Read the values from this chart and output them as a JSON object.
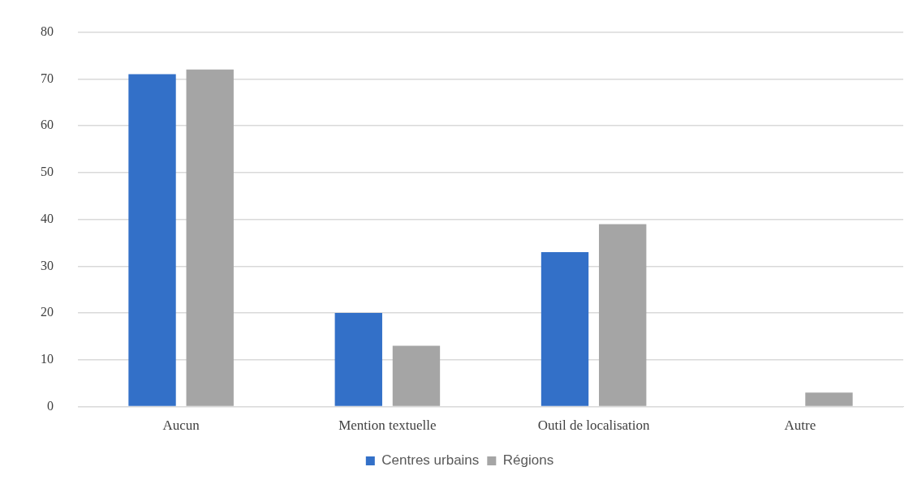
{
  "chart_data": {
    "type": "bar",
    "categories": [
      "Aucun",
      "Mention textuelle",
      "Outil de localisation",
      "Autre"
    ],
    "series": [
      {
        "name": "Centres urbains",
        "color": "#3370c8",
        "values": [
          71,
          20,
          33,
          0
        ]
      },
      {
        "name": "Régions",
        "color": "#a5a5a5",
        "values": [
          72,
          13,
          39,
          3
        ]
      }
    ],
    "ylim": [
      0,
      80
    ],
    "yticks": [
      0,
      10,
      20,
      30,
      40,
      50,
      60,
      70,
      80
    ],
    "grid": "y",
    "legend": "bottom"
  }
}
